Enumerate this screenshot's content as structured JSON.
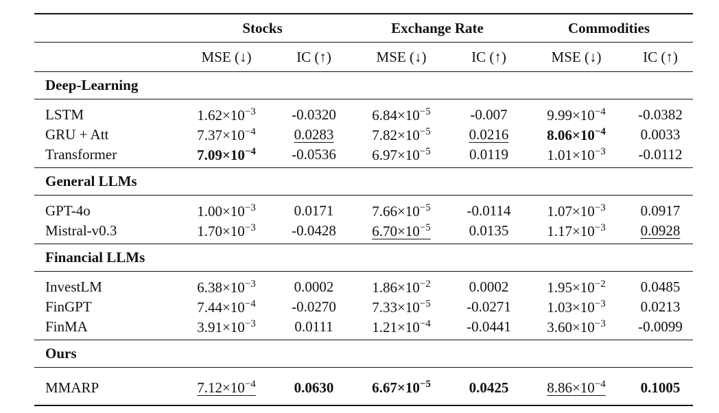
{
  "groups": [
    "Stocks",
    "Exchange Rate",
    "Commodities"
  ],
  "metrics": [
    "MSE (↓)",
    "IC (↑)",
    "MSE (↓)",
    "IC (↑)",
    "MSE (↓)",
    "IC (↑)"
  ],
  "sections": [
    {
      "name": "Deep-Learning",
      "rows": [
        {
          "model": "LSTM",
          "cells": [
            {
              "m": "1.62",
              "e": "−3"
            },
            {
              "t": "-0.0320"
            },
            {
              "m": "6.84",
              "e": "−5"
            },
            {
              "t": "-0.007"
            },
            {
              "m": "9.99",
              "e": "−4"
            },
            {
              "t": "-0.0382"
            }
          ]
        },
        {
          "model": "GRU + Att",
          "cells": [
            {
              "m": "7.37",
              "e": "−4"
            },
            {
              "t": "0.0283",
              "style": "underline"
            },
            {
              "m": "7.82",
              "e": "−5"
            },
            {
              "t": "0.0216",
              "style": "underline"
            },
            {
              "m": "8.06",
              "e": "−4",
              "style": "bold"
            },
            {
              "t": "0.0033"
            }
          ]
        },
        {
          "model": "Transformer",
          "cells": [
            {
              "m": "7.09",
              "e": "−4",
              "style": "bold"
            },
            {
              "t": "-0.0536"
            },
            {
              "m": "6.97",
              "e": "−5"
            },
            {
              "t": "0.0119"
            },
            {
              "m": "1.01",
              "e": "−3"
            },
            {
              "t": "-0.0112"
            }
          ]
        }
      ]
    },
    {
      "name": "General LLMs",
      "rows": [
        {
          "model": "GPT-4o",
          "cells": [
            {
              "m": "1.00",
              "e": "−3"
            },
            {
              "t": "0.0171"
            },
            {
              "m": "7.66",
              "e": "−5"
            },
            {
              "t": "-0.0114"
            },
            {
              "m": "1.07",
              "e": "−3"
            },
            {
              "t": "0.0917"
            }
          ]
        },
        {
          "model": "Mistral-v0.3",
          "cells": [
            {
              "m": "1.70",
              "e": "−3"
            },
            {
              "t": "-0.0428"
            },
            {
              "m": "6.70",
              "e": "−5",
              "style": "underline"
            },
            {
              "t": "0.0135"
            },
            {
              "m": "1.17",
              "e": "−3"
            },
            {
              "t": "0.0928",
              "style": "underline"
            }
          ]
        }
      ]
    },
    {
      "name": "Financial LLMs",
      "rows": [
        {
          "model": "InvestLM",
          "cells": [
            {
              "m": "6.38",
              "e": "−3"
            },
            {
              "t": "0.0002"
            },
            {
              "m": "1.86",
              "e": "−2"
            },
            {
              "t": "0.0002"
            },
            {
              "m": "1.95",
              "e": "−2"
            },
            {
              "t": "0.0485"
            }
          ]
        },
        {
          "model": "FinGPT",
          "cells": [
            {
              "m": "7.44",
              "e": "−4"
            },
            {
              "t": "-0.0270"
            },
            {
              "m": "7.33",
              "e": "−5"
            },
            {
              "t": "-0.0271"
            },
            {
              "m": "1.03",
              "e": "−3"
            },
            {
              "t": "0.0213"
            }
          ]
        },
        {
          "model": "FinMA",
          "cells": [
            {
              "m": "3.91",
              "e": "−3"
            },
            {
              "t": "0.0111"
            },
            {
              "m": "1.21",
              "e": "−4"
            },
            {
              "t": "-0.0441"
            },
            {
              "m": "3.60",
              "e": "−3"
            },
            {
              "t": "-0.0099"
            }
          ]
        }
      ]
    },
    {
      "name": "Ours",
      "rows": [
        {
          "model": "MMARP",
          "cells": [
            {
              "m": "7.12",
              "e": "−4",
              "style": "underline"
            },
            {
              "t": "0.0630",
              "style": "bold"
            },
            {
              "m": "6.67",
              "e": "−5",
              "style": "bold"
            },
            {
              "t": "0.0425",
              "style": "bold"
            },
            {
              "m": "8.86",
              "e": "−4",
              "style": "underline"
            },
            {
              "t": "0.1005",
              "style": "bold"
            }
          ]
        }
      ]
    }
  ]
}
